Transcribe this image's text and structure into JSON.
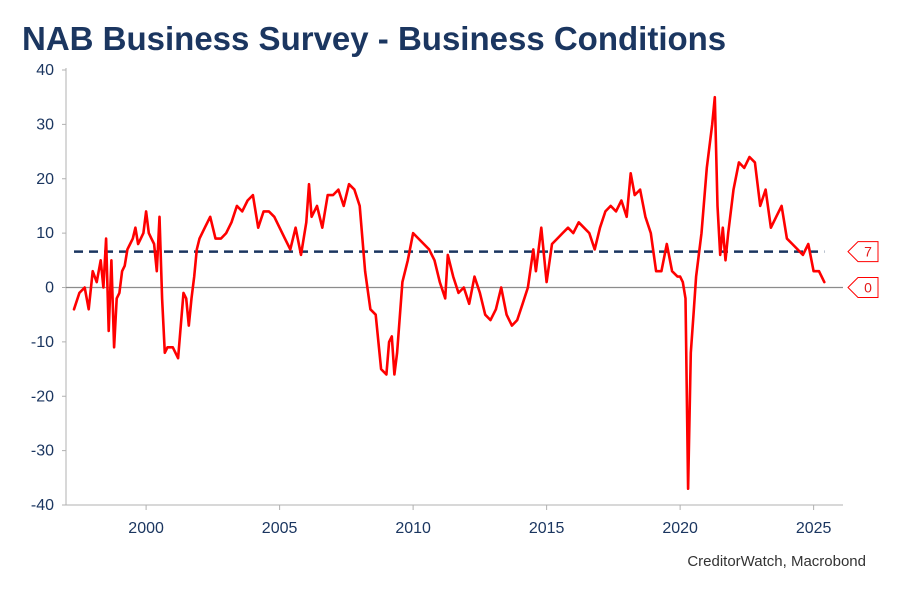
{
  "title": "NAB Business Survey - Business Conditions",
  "source": "CreditorWatch, Macrobond",
  "colors": {
    "series": "#ff0000",
    "average": "#1b3660",
    "zero": "#8c8c8c",
    "axis": "#b0b0b0",
    "text": "#1b3660"
  },
  "chart_data": {
    "type": "line",
    "title": "NAB Business Survey - Business Conditions",
    "xlim": [
      1997.0,
      2026.1
    ],
    "ylim": [
      -40,
      40
    ],
    "x_ticks": [
      2000,
      2005,
      2010,
      2015,
      2020,
      2025
    ],
    "y_ticks": [
      40,
      30,
      20,
      10,
      0,
      -10,
      -20,
      -30,
      -40
    ],
    "grid": false,
    "legend": "none",
    "series": [
      {
        "values_x": [
          1997.3,
          1997.5,
          1997.7,
          1997.85,
          1998.0,
          1998.15,
          1998.3,
          1998.4,
          1998.5,
          1998.6,
          1998.7,
          1998.8,
          1998.9,
          1999.0,
          1999.1,
          1999.2,
          1999.3,
          1999.4,
          1999.5,
          1999.6,
          1999.7,
          1999.8,
          1999.9,
          2000.0,
          2000.1,
          2000.2,
          2000.3,
          2000.4,
          2000.5,
          2000.6,
          2000.7,
          2000.8,
          2001.0,
          2001.2,
          2001.4,
          2001.5,
          2001.6,
          2001.7,
          2001.8,
          2001.9,
          2002.0,
          2002.2,
          2002.4,
          2002.6,
          2002.8,
          2003.0,
          2003.2,
          2003.4,
          2003.6,
          2003.8,
          2004.0,
          2004.2,
          2004.4,
          2004.6,
          2004.8,
          2005.0,
          2005.2,
          2005.4,
          2005.6,
          2005.8,
          2006.0,
          2006.1,
          2006.2,
          2006.4,
          2006.6,
          2006.8,
          2007.0,
          2007.2,
          2007.4,
          2007.6,
          2007.8,
          2008.0,
          2008.2,
          2008.4,
          2008.6,
          2008.8,
          2009.0,
          2009.1,
          2009.2,
          2009.3,
          2009.4,
          2009.6,
          2009.8,
          2010.0,
          2010.2,
          2010.4,
          2010.6,
          2010.8,
          2011.0,
          2011.2,
          2011.3,
          2011.5,
          2011.7,
          2011.9,
          2012.1,
          2012.3,
          2012.5,
          2012.7,
          2012.9,
          2013.1,
          2013.3,
          2013.5,
          2013.7,
          2013.9,
          2014.1,
          2014.3,
          2014.5,
          2014.6,
          2014.8,
          2015.0,
          2015.2,
          2015.4,
          2015.6,
          2015.8,
          2016.0,
          2016.2,
          2016.4,
          2016.6,
          2016.8,
          2017.0,
          2017.2,
          2017.4,
          2017.6,
          2017.8,
          2018.0,
          2018.15,
          2018.3,
          2018.5,
          2018.7,
          2018.9,
          2019.1,
          2019.3,
          2019.5,
          2019.7,
          2019.9,
          2020.0,
          2020.1,
          2020.2,
          2020.3,
          2020.4,
          2020.5,
          2020.6,
          2020.8,
          2021.0,
          2021.2,
          2021.3,
          2021.4,
          2021.5,
          2021.6,
          2021.7,
          2021.8,
          2022.0,
          2022.2,
          2022.4,
          2022.6,
          2022.8,
          2023.0,
          2023.2,
          2023.4,
          2023.6,
          2023.8,
          2024.0,
          2024.2,
          2024.4,
          2024.6,
          2024.8,
          2025.0,
          2025.2,
          2025.4
        ],
        "values": [
          -4,
          -1,
          0,
          -4,
          3,
          1,
          5,
          0,
          9,
          -8,
          5,
          -11,
          -2,
          -1,
          3,
          4,
          7,
          8,
          9,
          11,
          8,
          9,
          10,
          14,
          10,
          9,
          8,
          3,
          13,
          -2,
          -12,
          -11,
          -11,
          -13,
          -1,
          -2,
          -7,
          -2,
          2,
          7,
          9,
          11,
          13,
          9,
          9,
          10,
          12,
          15,
          14,
          16,
          17,
          11,
          14,
          14,
          13,
          11,
          9,
          7,
          11,
          6,
          12,
          19,
          13,
          15,
          11,
          17,
          17,
          18,
          15,
          19,
          18,
          15,
          3,
          -4,
          -5,
          -15,
          -16,
          -10,
          -9,
          -16,
          -12,
          1,
          5,
          10,
          9,
          8,
          7,
          5,
          1,
          -2,
          6,
          2,
          -1,
          0,
          -3,
          2,
          -1,
          -5,
          -6,
          -4,
          0,
          -5,
          -7,
          -6,
          -3,
          0,
          7,
          3,
          11,
          1,
          8,
          9,
          10,
          11,
          10,
          12,
          11,
          10,
          7,
          11,
          14,
          15,
          14,
          16,
          13,
          21,
          17,
          18,
          13,
          10,
          3,
          3,
          8,
          3,
          2,
          2,
          1,
          -2,
          -37,
          -12,
          -5,
          2,
          10,
          22,
          30,
          35,
          15,
          6,
          11,
          5,
          10,
          18,
          23,
          22,
          24,
          23,
          15,
          18,
          11,
          13,
          15,
          9,
          8,
          7,
          6,
          8,
          3,
          3,
          1
        ]
      }
    ],
    "reference_lines": [
      {
        "style": "dashed",
        "value": 6.6,
        "label": "7"
      },
      {
        "style": "solid",
        "value": 0,
        "label": "0"
      }
    ]
  }
}
